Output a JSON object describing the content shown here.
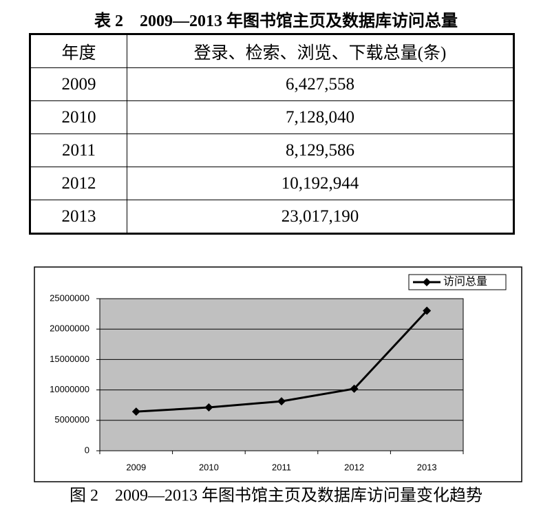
{
  "table": {
    "title": "表 2　2009—2013 年图书馆主页及数据库访问总量",
    "header": [
      "年度",
      "登录、检索、浏览、下载总量(条)"
    ],
    "rows": [
      [
        "2009",
        "6,427,558"
      ],
      [
        "2010",
        "7,128,040"
      ],
      [
        "2011",
        "8,129,586"
      ],
      [
        "2012",
        "10,192,944"
      ],
      [
        "2013",
        "23,017,190"
      ]
    ]
  },
  "chart_data": {
    "type": "line",
    "title": "图 2　2009—2013 年图书馆主页及数据库访问量变化趋势",
    "categories": [
      "2009",
      "2010",
      "2011",
      "2012",
      "2013"
    ],
    "series": [
      {
        "name": "访问总量",
        "color": "#000000",
        "values": [
          6427558,
          7128040,
          8129586,
          10192944,
          23017190
        ]
      }
    ],
    "ylim": [
      0,
      25000000
    ],
    "yticks": [
      0,
      5000000,
      10000000,
      15000000,
      20000000,
      25000000
    ],
    "grid": true,
    "legend": "top-right",
    "plot_background": "#c0c0c0"
  }
}
